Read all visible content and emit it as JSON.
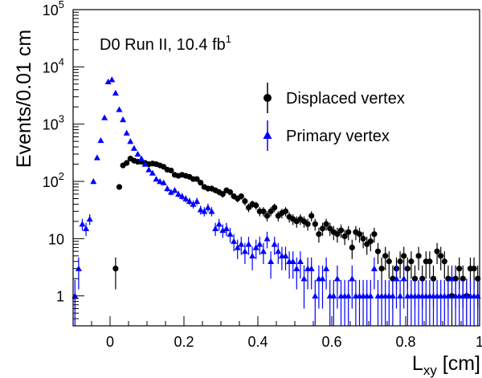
{
  "chart_data": {
    "type": "scatter",
    "title": "",
    "annotation": "D0 Run II, 10.4 fb",
    "annotation_sup": "1",
    "xlabel_main": "L",
    "xlabel_sub": "xy",
    "xlabel_unit": " [cm]",
    "ylabel": "Events/0.01 cm",
    "xlim": [
      -0.1,
      1.0
    ],
    "ylim": [
      0.3,
      100000
    ],
    "y_scale": "log",
    "grid": false,
    "legend_position": "right",
    "x_ticks": [
      {
        "v": 0,
        "label": "0"
      },
      {
        "v": 0.2,
        "label": "0.2"
      },
      {
        "v": 0.4,
        "label": "0.4"
      },
      {
        "v": 0.6,
        "label": "0.6"
      },
      {
        "v": 0.8,
        "label": "0.8"
      },
      {
        "v": 1.0,
        "label": "1"
      }
    ],
    "y_ticks": [
      {
        "v": 1,
        "label": "1"
      },
      {
        "v": 10,
        "label": "10"
      },
      {
        "v": 100,
        "label": "10",
        "exp": "2"
      },
      {
        "v": 1000,
        "label": "10",
        "exp": "3"
      },
      {
        "v": 10000,
        "label": "10",
        "exp": "4"
      },
      {
        "v": 100000,
        "label": "10",
        "exp": "5"
      }
    ],
    "series": [
      {
        "name": "Displaced vertex",
        "marker": "circle",
        "color": "#000000",
        "x": [
          0.015,
          0.025,
          0.035,
          0.045,
          0.055,
          0.065,
          0.075,
          0.085,
          0.095,
          0.105,
          0.115,
          0.125,
          0.135,
          0.145,
          0.155,
          0.165,
          0.175,
          0.185,
          0.195,
          0.205,
          0.215,
          0.225,
          0.235,
          0.245,
          0.255,
          0.265,
          0.275,
          0.285,
          0.295,
          0.305,
          0.315,
          0.325,
          0.335,
          0.345,
          0.355,
          0.365,
          0.375,
          0.385,
          0.395,
          0.405,
          0.415,
          0.425,
          0.435,
          0.445,
          0.455,
          0.465,
          0.475,
          0.485,
          0.495,
          0.505,
          0.515,
          0.525,
          0.535,
          0.545,
          0.555,
          0.565,
          0.575,
          0.585,
          0.595,
          0.605,
          0.615,
          0.625,
          0.635,
          0.645,
          0.655,
          0.665,
          0.675,
          0.685,
          0.695,
          0.705,
          0.715,
          0.725,
          0.735,
          0.745,
          0.755,
          0.765,
          0.775,
          0.785,
          0.795,
          0.805,
          0.815,
          0.825,
          0.835,
          0.845,
          0.855,
          0.865,
          0.875,
          0.885,
          0.895,
          0.905,
          0.915,
          0.925,
          0.935,
          0.945,
          0.955,
          0.965,
          0.975,
          0.985,
          0.995
        ],
        "y": [
          3,
          80,
          190,
          210,
          250,
          230,
          220,
          220,
          210,
          200,
          205,
          200,
          190,
          180,
          160,
          155,
          130,
          125,
          130,
          125,
          120,
          110,
          110,
          95,
          80,
          75,
          75,
          70,
          65,
          60,
          70,
          65,
          55,
          50,
          55,
          45,
          35,
          40,
          38,
          30,
          30,
          25,
          30,
          35,
          25,
          28,
          30,
          24,
          22,
          20,
          22,
          20,
          18,
          25,
          18,
          12,
          15,
          18,
          15,
          13,
          12,
          14,
          11,
          13,
          7,
          13,
          12,
          10,
          8,
          9,
          12,
          6,
          3,
          5,
          4,
          2,
          3,
          4,
          5,
          3,
          4,
          2,
          5,
          2,
          4,
          4,
          2,
          6,
          5,
          4,
          2,
          1,
          2,
          3,
          2,
          1,
          3,
          3,
          2
        ],
        "err": [
          1.7,
          9,
          14,
          15,
          16,
          15,
          15,
          15,
          15,
          14,
          14,
          14,
          14,
          13,
          13,
          12,
          11,
          11,
          11,
          11,
          11,
          10,
          10,
          10,
          9,
          9,
          9,
          8,
          8,
          8,
          8,
          8,
          7,
          7,
          7,
          7,
          6,
          6,
          6,
          5.5,
          5.5,
          5,
          5.5,
          6,
          5,
          5.3,
          5.5,
          4.9,
          4.7,
          4.5,
          4.7,
          4.5,
          4.2,
          5,
          4.2,
          3.5,
          3.9,
          4.2,
          3.9,
          3.6,
          3.5,
          3.7,
          3.3,
          3.6,
          2.6,
          3.6,
          3.5,
          3.2,
          2.8,
          3,
          3.5,
          2.4,
          1.7,
          2.2,
          2,
          1.4,
          1.7,
          2,
          2.2,
          1.7,
          2,
          1.4,
          2.2,
          1.4,
          2,
          2,
          1.4,
          2.4,
          2.2,
          2,
          1.4,
          1,
          1.4,
          1.7,
          1.4,
          1,
          1.7,
          1.7,
          1.4
        ]
      },
      {
        "name": "Primary vertex",
        "marker": "triangle",
        "color": "#0000ff",
        "x": [
          -0.095,
          -0.085,
          -0.075,
          -0.065,
          -0.055,
          -0.045,
          -0.035,
          -0.025,
          -0.015,
          -0.005,
          0.005,
          0.015,
          0.025,
          0.035,
          0.045,
          0.055,
          0.065,
          0.075,
          0.085,
          0.095,
          0.105,
          0.115,
          0.125,
          0.135,
          0.145,
          0.155,
          0.165,
          0.175,
          0.185,
          0.195,
          0.205,
          0.215,
          0.225,
          0.235,
          0.245,
          0.255,
          0.265,
          0.275,
          0.285,
          0.295,
          0.305,
          0.315,
          0.325,
          0.335,
          0.345,
          0.355,
          0.365,
          0.375,
          0.385,
          0.395,
          0.405,
          0.415,
          0.425,
          0.435,
          0.445,
          0.455,
          0.465,
          0.475,
          0.485,
          0.495,
          0.505,
          0.515,
          0.525,
          0.535,
          0.545,
          0.555,
          0.565,
          0.575,
          0.585,
          0.595,
          0.605,
          0.615,
          0.625,
          0.635,
          0.645,
          0.655,
          0.665,
          0.675,
          0.685,
          0.695,
          0.705,
          0.715,
          0.725,
          0.735,
          0.745,
          0.755,
          0.765,
          0.775,
          0.785,
          0.795,
          0.805,
          0.815,
          0.825,
          0.835,
          0.845,
          0.855,
          0.865,
          0.875,
          0.885,
          0.895,
          0.905,
          0.915,
          0.925,
          0.935,
          0.945,
          0.955,
          0.965,
          0.975,
          0.985,
          0.995
        ],
        "y": [
          1,
          3,
          18,
          15,
          22,
          100,
          260,
          520,
          1300,
          5500,
          6000,
          3500,
          1800,
          1200,
          700,
          500,
          380,
          300,
          250,
          200,
          160,
          140,
          110,
          100,
          95,
          75,
          65,
          70,
          60,
          55,
          50,
          45,
          40,
          45,
          32,
          30,
          35,
          30,
          15,
          18,
          14,
          15,
          12,
          9,
          7,
          8,
          6,
          8,
          5,
          7,
          8,
          6,
          10,
          4,
          8,
          6,
          5,
          5,
          4,
          4,
          3,
          4,
          2,
          3,
          3,
          1,
          2,
          2,
          3,
          1,
          1,
          2,
          1,
          1,
          1,
          2,
          1,
          1,
          1,
          1,
          1,
          3,
          1,
          1,
          1,
          1,
          1,
          2,
          1,
          2,
          1,
          1,
          1,
          1,
          1,
          1,
          1,
          1,
          1,
          1,
          1,
          1,
          2,
          1,
          1,
          1,
          1,
          1,
          1,
          1
        ],
        "err": [
          0.9,
          1.7,
          4.2,
          3.9,
          4.7,
          10,
          16,
          23,
          36,
          74,
          77,
          59,
          42,
          35,
          26,
          22,
          19,
          17,
          16,
          14,
          13,
          12,
          10,
          10,
          10,
          8.7,
          8,
          8.4,
          7.7,
          7.4,
          7,
          6.7,
          6.3,
          6.7,
          5.7,
          5.5,
          5.9,
          5.5,
          3.9,
          4.2,
          3.7,
          3.9,
          3.5,
          3,
          2.6,
          2.8,
          2.4,
          2.8,
          2.2,
          2.6,
          2.8,
          2.4,
          3.2,
          2,
          2.8,
          2.4,
          2.2,
          2.2,
          2,
          2,
          1.7,
          2,
          1.4,
          1.7,
          1.7,
          0.9,
          1.4,
          1.4,
          1.7,
          0.9,
          0.9,
          1.4,
          0.9,
          0.9,
          0.9,
          1.4,
          0.9,
          0.9,
          0.9,
          0.9,
          0.9,
          1.7,
          0.9,
          0.9,
          0.9,
          0.9,
          0.9,
          1.4,
          0.9,
          1.4,
          0.9,
          0.9,
          0.9,
          0.9,
          0.9,
          0.9,
          0.9,
          0.9,
          0.9,
          0.9,
          0.9,
          0.9,
          1.4,
          0.9,
          0.9,
          0.9,
          0.9,
          0.9,
          0.9,
          0.9
        ]
      }
    ]
  }
}
